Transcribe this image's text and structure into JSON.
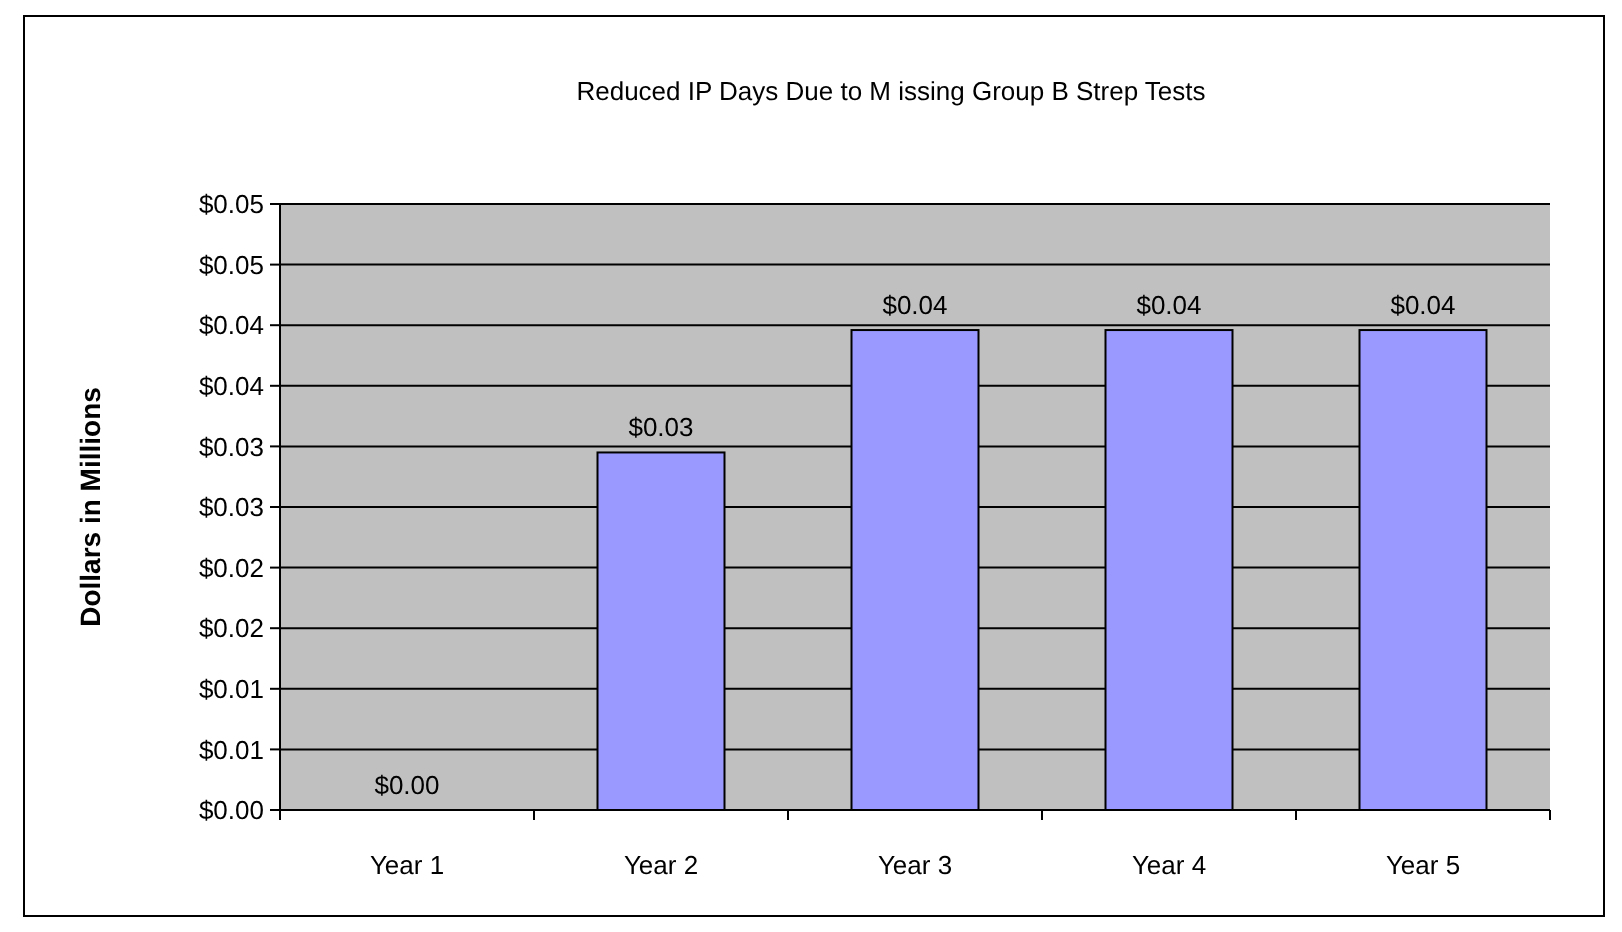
{
  "chart_data": {
    "type": "bar",
    "title": "Reduced IP Days Due to M issing Group B Strep Tests",
    "ylabel": "Dollars in Millions",
    "categories": [
      "Year 1",
      "Year 2",
      "Year 3",
      "Year 4",
      "Year 5"
    ],
    "values": [
      0,
      0.0295,
      0.0396,
      0.0396,
      0.0396
    ],
    "value_labels": [
      "$0.00",
      "$0.03",
      "$0.04",
      "$0.04",
      "$0.04"
    ],
    "color": "#9999ff",
    "ylim": [
      0,
      0.05
    ],
    "yticks": [
      {
        "value": 0,
        "label": "$0.00"
      },
      {
        "value": 0.005,
        "label": "$0.01"
      },
      {
        "value": 0.01,
        "label": "$0.01"
      },
      {
        "value": 0.015,
        "label": "$0.02"
      },
      {
        "value": 0.02,
        "label": "$0.02"
      },
      {
        "value": 0.025,
        "label": "$0.03"
      },
      {
        "value": 0.03,
        "label": "$0.03"
      },
      {
        "value": 0.035,
        "label": "$0.04"
      },
      {
        "value": 0.04,
        "label": "$0.04"
      },
      {
        "value": 0.045,
        "label": "$0.05"
      },
      {
        "value": 0.05,
        "label": "$0.05"
      }
    ],
    "grid": "y"
  }
}
